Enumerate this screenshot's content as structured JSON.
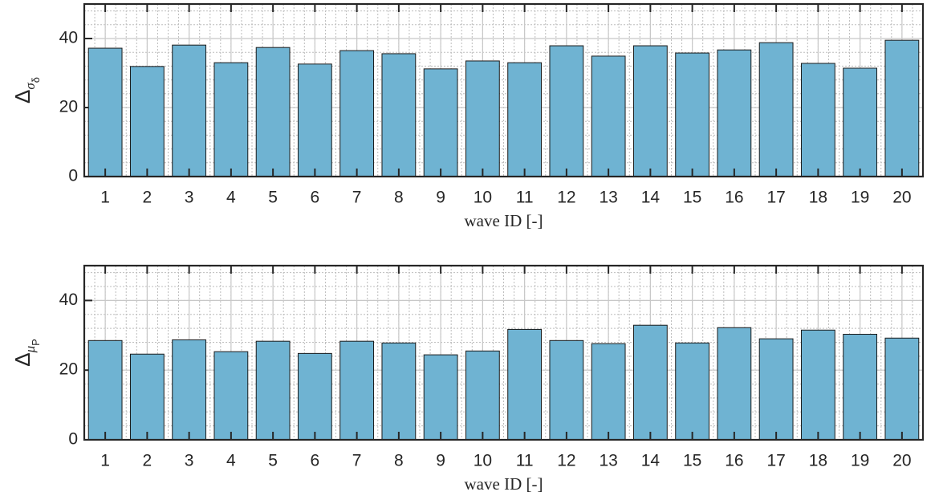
{
  "chart_data": [
    {
      "type": "bar",
      "categories": [
        "1",
        "2",
        "3",
        "4",
        "5",
        "6",
        "7",
        "8",
        "9",
        "10",
        "11",
        "12",
        "13",
        "14",
        "15",
        "16",
        "17",
        "18",
        "19",
        "20"
      ],
      "values": [
        37.2,
        31.9,
        38.1,
        33.0,
        37.4,
        32.6,
        36.5,
        35.6,
        31.2,
        33.5,
        33.0,
        37.9,
        34.9,
        37.9,
        35.8,
        36.7,
        38.8,
        32.8,
        31.4,
        39.5
      ],
      "color": "#6fb3d2",
      "ylim": [
        0,
        50
      ],
      "yticks": [
        0,
        20,
        40
      ],
      "xlabel": "wave ID [-]",
      "ylabel": "Δ",
      "ylabel_sub": "σ",
      "ylabel_subsub": "δ",
      "grid": true,
      "minor_grid": true
    },
    {
      "type": "bar",
      "categories": [
        "1",
        "2",
        "3",
        "4",
        "5",
        "6",
        "7",
        "8",
        "9",
        "10",
        "11",
        "12",
        "13",
        "14",
        "15",
        "16",
        "17",
        "18",
        "19",
        "20"
      ],
      "values": [
        28.5,
        24.6,
        28.7,
        25.3,
        28.3,
        24.8,
        28.3,
        27.8,
        24.4,
        25.5,
        31.7,
        28.5,
        27.6,
        32.9,
        27.8,
        32.2,
        29.0,
        31.5,
        30.3,
        29.2
      ],
      "color": "#6fb3d2",
      "ylim": [
        0,
        50
      ],
      "yticks": [
        0,
        20,
        40
      ],
      "xlabel": "wave ID [-]",
      "ylabel": "Δ",
      "ylabel_sub": "μ",
      "ylabel_subsub": "P",
      "grid": true,
      "minor_grid": true
    }
  ]
}
